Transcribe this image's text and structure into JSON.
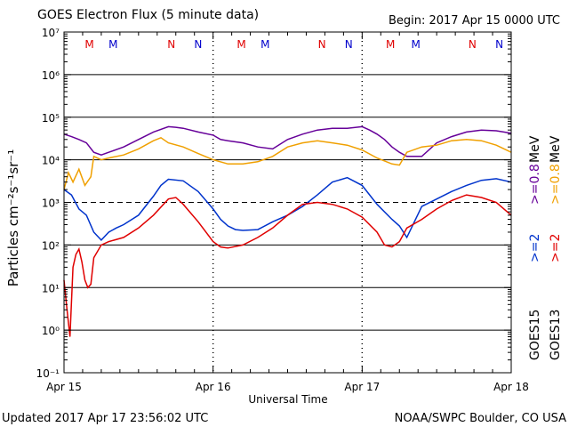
{
  "header": {
    "title": "GOES Electron Flux (5 minute data)",
    "begin": "Begin: 2017 Apr 15 0000 UTC"
  },
  "footer": {
    "updated": "Updated 2017 Apr 17 23:56:02 UTC",
    "credit": "NOAA/SWPC Boulder, CO USA"
  },
  "axes": {
    "xlabel": "Universal Time",
    "ylabel": "Particles cm⁻²s⁻¹sr⁻¹",
    "x_ticks": [
      "Apr 15",
      "Apr 16",
      "Apr 17",
      "Apr 18"
    ],
    "y_ticks": [
      "10⁻¹",
      "10⁰",
      "10¹",
      "10²",
      "10³",
      "10⁴",
      "10⁵",
      "10⁶",
      "10⁷"
    ],
    "y_tick_values": [
      -1,
      0,
      1,
      2,
      3,
      4,
      5,
      6,
      7
    ]
  },
  "legend": {
    "goes15_label": "GOES15",
    "goes13_label": "GOES13",
    "goes15_ge2": ">=2",
    "goes15_ge08": ">=0.8",
    "goes13_ge2": ">=2",
    "goes13_ge08": ">=0.8",
    "mev": "MeV"
  },
  "markers": [
    {
      "label": "M",
      "day": 0.17,
      "color": "#e00000"
    },
    {
      "label": "M",
      "day": 0.33,
      "color": "#0000cc"
    },
    {
      "label": "N",
      "day": 0.72,
      "color": "#e00000"
    },
    {
      "label": "N",
      "day": 0.9,
      "color": "#0000cc"
    },
    {
      "label": "M",
      "day": 1.19,
      "color": "#e00000"
    },
    {
      "label": "M",
      "day": 1.35,
      "color": "#0000cc"
    },
    {
      "label": "N",
      "day": 1.73,
      "color": "#e00000"
    },
    {
      "label": "N",
      "day": 1.91,
      "color": "#0000cc"
    },
    {
      "label": "M",
      "day": 2.19,
      "color": "#e00000"
    },
    {
      "label": "M",
      "day": 2.36,
      "color": "#0000cc"
    },
    {
      "label": "N",
      "day": 2.74,
      "color": "#e00000"
    },
    {
      "label": "N",
      "day": 2.92,
      "color": "#0000cc"
    }
  ],
  "chart_data": {
    "type": "line",
    "title": "GOES Electron Flux (5 minute data)",
    "xlabel": "Universal Time",
    "ylabel": "Particles cm⁻²s⁻¹sr⁻¹",
    "y_scale": "log",
    "ylim": [
      0.1,
      10000000
    ],
    "x_unit": "days since 2017 Apr 15 0000 UTC",
    "xlim": [
      0,
      3
    ],
    "alert_threshold": 1000,
    "series": [
      {
        "name": "GOES15 >=0.8 MeV",
        "color": "#660099",
        "x": [
          0,
          0.05,
          0.1,
          0.15,
          0.2,
          0.25,
          0.3,
          0.4,
          0.5,
          0.6,
          0.7,
          0.75,
          0.8,
          0.9,
          1.0,
          1.05,
          1.1,
          1.2,
          1.3,
          1.4,
          1.5,
          1.6,
          1.7,
          1.8,
          1.9,
          2.0,
          2.05,
          2.1,
          2.15,
          2.2,
          2.25,
          2.3,
          2.4,
          2.5,
          2.6,
          2.7,
          2.8,
          2.9,
          3.0
        ],
        "y": [
          40000,
          35000,
          30000,
          25000,
          15000,
          13000,
          15000,
          20000,
          30000,
          45000,
          60000,
          58000,
          55000,
          45000,
          38000,
          30000,
          28000,
          25000,
          20000,
          18000,
          30000,
          40000,
          50000,
          55000,
          55000,
          60000,
          50000,
          40000,
          30000,
          20000,
          15000,
          12000,
          12000,
          25000,
          35000,
          45000,
          50000,
          48000,
          42000
        ]
      },
      {
        "name": "GOES13 >=0.8 MeV",
        "color": "#f0a000",
        "x": [
          0,
          0.03,
          0.06,
          0.1,
          0.14,
          0.18,
          0.2,
          0.25,
          0.3,
          0.4,
          0.5,
          0.6,
          0.65,
          0.7,
          0.8,
          0.9,
          1.0,
          1.1,
          1.2,
          1.3,
          1.4,
          1.5,
          1.6,
          1.7,
          1.8,
          1.9,
          2.0,
          2.1,
          2.2,
          2.25,
          2.3,
          2.4,
          2.5,
          2.6,
          2.7,
          2.8,
          2.9,
          3.0
        ],
        "y": [
          2000,
          5000,
          3000,
          6000,
          2500,
          4000,
          12000,
          10000,
          11000,
          13000,
          18000,
          28000,
          33000,
          25000,
          20000,
          14000,
          10000,
          8000,
          8000,
          9000,
          12000,
          20000,
          25000,
          28000,
          25000,
          22000,
          17000,
          11000,
          8000,
          7500,
          15000,
          20000,
          22000,
          28000,
          30000,
          28000,
          22000,
          15000
        ]
      },
      {
        "name": "GOES15 >=2 MeV",
        "color": "#0033cc",
        "x": [
          0,
          0.05,
          0.1,
          0.15,
          0.2,
          0.25,
          0.3,
          0.35,
          0.4,
          0.5,
          0.6,
          0.65,
          0.7,
          0.8,
          0.9,
          1.0,
          1.05,
          1.1,
          1.15,
          1.2,
          1.3,
          1.4,
          1.5,
          1.6,
          1.7,
          1.8,
          1.9,
          2.0,
          2.1,
          2.2,
          2.25,
          2.3,
          2.4,
          2.5,
          2.6,
          2.7,
          2.8,
          2.9,
          3.0
        ],
        "y": [
          2000,
          1500,
          700,
          500,
          200,
          130,
          200,
          250,
          300,
          500,
          1400,
          2500,
          3500,
          3200,
          1800,
          700,
          400,
          280,
          230,
          220,
          230,
          350,
          500,
          800,
          1500,
          3000,
          3800,
          2500,
          900,
          400,
          280,
          150,
          800,
          1200,
          1800,
          2500,
          3300,
          3600,
          3000
        ]
      },
      {
        "name": "GOES13 >=2 MeV",
        "color": "#e00000",
        "x": [
          0,
          0.02,
          0.04,
          0.06,
          0.08,
          0.1,
          0.12,
          0.14,
          0.16,
          0.18,
          0.2,
          0.25,
          0.3,
          0.4,
          0.5,
          0.6,
          0.7,
          0.75,
          0.8,
          0.9,
          1.0,
          1.05,
          1.1,
          1.2,
          1.3,
          1.4,
          1.5,
          1.6,
          1.7,
          1.8,
          1.9,
          2.0,
          2.1,
          2.15,
          2.2,
          2.25,
          2.3,
          2.4,
          2.5,
          2.6,
          2.7,
          2.8,
          2.9,
          3.0
        ],
        "y": [
          15,
          3,
          0.7,
          30,
          60,
          80,
          40,
          15,
          10,
          12,
          50,
          100,
          120,
          150,
          250,
          500,
          1200,
          1300,
          900,
          350,
          120,
          90,
          85,
          100,
          150,
          250,
          500,
          900,
          1000,
          900,
          700,
          450,
          200,
          100,
          90,
          120,
          250,
          400,
          700,
          1100,
          1500,
          1300,
          1000,
          500
        ]
      }
    ],
    "x_ticks": [
      "Apr 15",
      "Apr 16",
      "Apr 17",
      "Apr 18"
    ],
    "y_ticks": [
      "10⁻¹",
      "10⁰",
      "10¹",
      "10²",
      "10³",
      "10⁴",
      "10⁵",
      "10⁶",
      "10⁷"
    ],
    "grid": "horizontal decade lines; dashed line at 10^3; dashed vertical day separators"
  }
}
